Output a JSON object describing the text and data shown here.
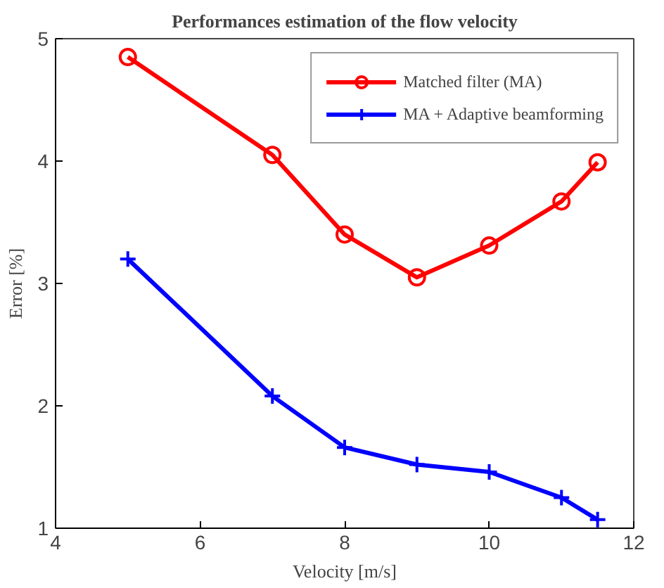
{
  "chart_data": {
    "type": "line",
    "title": "Performances estimation of the flow velocity",
    "xlabel": "Velocity [m/s]",
    "ylabel": "Error [%]",
    "x": [
      5,
      7,
      8,
      9,
      10,
      11,
      11.5
    ],
    "series": [
      {
        "name": "Matched filter (MA)",
        "color": "#ff0000",
        "marker": "circle",
        "values": [
          4.85,
          4.05,
          3.4,
          3.05,
          3.31,
          3.67,
          3.99
        ]
      },
      {
        "name": "MA + Adaptive beamforming",
        "color": "#0000ff",
        "marker": "cross",
        "values": [
          3.2,
          2.08,
          1.66,
          1.52,
          1.46,
          1.25,
          1.07
        ]
      }
    ],
    "xlim": [
      4,
      12
    ],
    "xticks": [
      4,
      6,
      8,
      10,
      12
    ],
    "ylim": [
      1,
      5
    ],
    "yticks": [
      1,
      2,
      3,
      4,
      5
    ],
    "grid": false,
    "legend": "top right",
    "line_style": "solid"
  }
}
